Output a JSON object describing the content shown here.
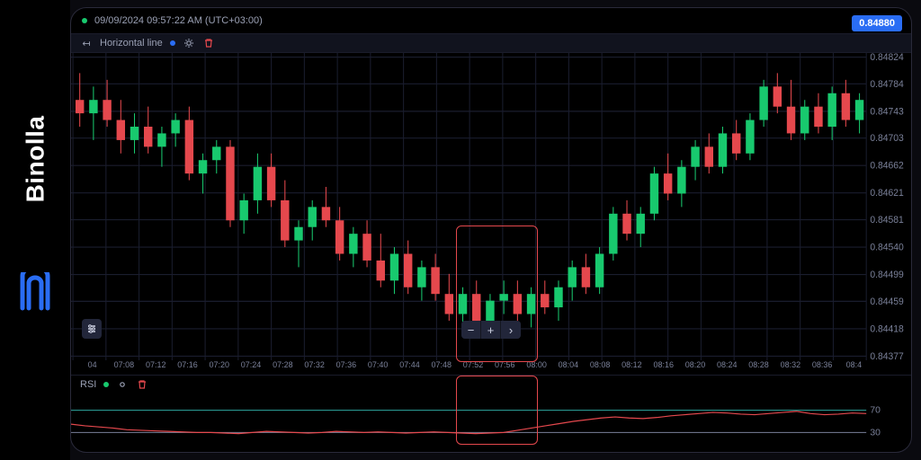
{
  "brand": {
    "name": "Binolla",
    "icon_color": "#2a6df4"
  },
  "meta": {
    "timestamp": "09/09/2024  09:57:22 AM  (UTC+03:00)",
    "price_badge": "0.84880"
  },
  "hline_bar": {
    "label": "Horizontal line",
    "dot_color": "#2a6df4"
  },
  "chart": {
    "type": "candlestick",
    "background_color": "#000000",
    "grid_color": "#1a1d2e",
    "up_color": "#18c96e",
    "down_color": "#e5484d",
    "horizontal_line_color": "#2a6df4",
    "horizontal_line_y": 0.8488,
    "highlight_box_color": "#e5484d",
    "ylim": [
      0.84377,
      0.84824
    ],
    "yticks": [
      0.84824,
      0.84784,
      0.84743,
      0.84703,
      0.84662,
      0.84621,
      0.84581,
      0.8454,
      0.84499,
      0.84459,
      0.84418,
      0.84377
    ],
    "xticks": [
      "04",
      "07:08",
      "07:12",
      "07:16",
      "07:20",
      "07:24",
      "07:28",
      "07:32",
      "07:36",
      "07:40",
      "07:44",
      "07:48",
      "07:52",
      "07:56",
      "08:00",
      "08:04",
      "08:08",
      "08:12",
      "08:16",
      "08:20",
      "08:24",
      "08:28",
      "08:32",
      "08:36",
      "08:4"
    ],
    "candles": [
      {
        "o": 0.8476,
        "h": 0.848,
        "l": 0.8472,
        "c": 0.8474,
        "d": "dn"
      },
      {
        "o": 0.8474,
        "h": 0.8478,
        "l": 0.847,
        "c": 0.8476,
        "d": "up"
      },
      {
        "o": 0.8476,
        "h": 0.8479,
        "l": 0.8472,
        "c": 0.8473,
        "d": "dn"
      },
      {
        "o": 0.8473,
        "h": 0.8476,
        "l": 0.8468,
        "c": 0.847,
        "d": "dn"
      },
      {
        "o": 0.847,
        "h": 0.8474,
        "l": 0.8468,
        "c": 0.8472,
        "d": "up"
      },
      {
        "o": 0.8472,
        "h": 0.8475,
        "l": 0.8468,
        "c": 0.8469,
        "d": "dn"
      },
      {
        "o": 0.8469,
        "h": 0.8472,
        "l": 0.8466,
        "c": 0.8471,
        "d": "up"
      },
      {
        "o": 0.8471,
        "h": 0.8474,
        "l": 0.8469,
        "c": 0.8473,
        "d": "up"
      },
      {
        "o": 0.8473,
        "h": 0.8475,
        "l": 0.8464,
        "c": 0.8465,
        "d": "dn"
      },
      {
        "o": 0.8465,
        "h": 0.8468,
        "l": 0.8462,
        "c": 0.8467,
        "d": "up"
      },
      {
        "o": 0.8467,
        "h": 0.847,
        "l": 0.8465,
        "c": 0.8469,
        "d": "up"
      },
      {
        "o": 0.8469,
        "h": 0.847,
        "l": 0.8457,
        "c": 0.8458,
        "d": "dn"
      },
      {
        "o": 0.8458,
        "h": 0.8462,
        "l": 0.8456,
        "c": 0.8461,
        "d": "up"
      },
      {
        "o": 0.8461,
        "h": 0.8468,
        "l": 0.8459,
        "c": 0.8466,
        "d": "up"
      },
      {
        "o": 0.8466,
        "h": 0.8468,
        "l": 0.846,
        "c": 0.8461,
        "d": "dn"
      },
      {
        "o": 0.8461,
        "h": 0.8464,
        "l": 0.8454,
        "c": 0.8455,
        "d": "dn"
      },
      {
        "o": 0.8455,
        "h": 0.8458,
        "l": 0.8451,
        "c": 0.8457,
        "d": "up"
      },
      {
        "o": 0.8457,
        "h": 0.8461,
        "l": 0.8455,
        "c": 0.846,
        "d": "up"
      },
      {
        "o": 0.846,
        "h": 0.8463,
        "l": 0.8457,
        "c": 0.8458,
        "d": "dn"
      },
      {
        "o": 0.8458,
        "h": 0.846,
        "l": 0.8452,
        "c": 0.8453,
        "d": "dn"
      },
      {
        "o": 0.8453,
        "h": 0.8457,
        "l": 0.8451,
        "c": 0.8456,
        "d": "up"
      },
      {
        "o": 0.8456,
        "h": 0.8458,
        "l": 0.8451,
        "c": 0.8452,
        "d": "dn"
      },
      {
        "o": 0.8452,
        "h": 0.8456,
        "l": 0.8448,
        "c": 0.8449,
        "d": "dn"
      },
      {
        "o": 0.8449,
        "h": 0.8454,
        "l": 0.8447,
        "c": 0.8453,
        "d": "up"
      },
      {
        "o": 0.8453,
        "h": 0.8455,
        "l": 0.8447,
        "c": 0.8448,
        "d": "dn"
      },
      {
        "o": 0.8448,
        "h": 0.8452,
        "l": 0.8446,
        "c": 0.8451,
        "d": "up"
      },
      {
        "o": 0.8451,
        "h": 0.8453,
        "l": 0.8446,
        "c": 0.8447,
        "d": "dn"
      },
      {
        "o": 0.8447,
        "h": 0.845,
        "l": 0.8443,
        "c": 0.8444,
        "d": "dn"
      },
      {
        "o": 0.8444,
        "h": 0.8448,
        "l": 0.8442,
        "c": 0.8447,
        "d": "up"
      },
      {
        "o": 0.8447,
        "h": 0.8449,
        "l": 0.8442,
        "c": 0.8443,
        "d": "dn"
      },
      {
        "o": 0.8443,
        "h": 0.8447,
        "l": 0.8441,
        "c": 0.8446,
        "d": "up"
      },
      {
        "o": 0.8446,
        "h": 0.8449,
        "l": 0.8444,
        "c": 0.8447,
        "d": "up"
      },
      {
        "o": 0.8447,
        "h": 0.8449,
        "l": 0.8443,
        "c": 0.8444,
        "d": "dn"
      },
      {
        "o": 0.8444,
        "h": 0.8448,
        "l": 0.8442,
        "c": 0.8447,
        "d": "up"
      },
      {
        "o": 0.8447,
        "h": 0.8449,
        "l": 0.8444,
        "c": 0.8445,
        "d": "dn"
      },
      {
        "o": 0.8445,
        "h": 0.8449,
        "l": 0.8443,
        "c": 0.8448,
        "d": "up"
      },
      {
        "o": 0.8448,
        "h": 0.8452,
        "l": 0.8446,
        "c": 0.8451,
        "d": "up"
      },
      {
        "o": 0.8451,
        "h": 0.8453,
        "l": 0.8447,
        "c": 0.8448,
        "d": "dn"
      },
      {
        "o": 0.8448,
        "h": 0.8454,
        "l": 0.8447,
        "c": 0.8453,
        "d": "up"
      },
      {
        "o": 0.8453,
        "h": 0.846,
        "l": 0.8452,
        "c": 0.8459,
        "d": "up"
      },
      {
        "o": 0.8459,
        "h": 0.8461,
        "l": 0.8455,
        "c": 0.8456,
        "d": "dn"
      },
      {
        "o": 0.8456,
        "h": 0.846,
        "l": 0.8454,
        "c": 0.8459,
        "d": "up"
      },
      {
        "o": 0.8459,
        "h": 0.8466,
        "l": 0.8458,
        "c": 0.8465,
        "d": "up"
      },
      {
        "o": 0.8465,
        "h": 0.8468,
        "l": 0.8461,
        "c": 0.8462,
        "d": "dn"
      },
      {
        "o": 0.8462,
        "h": 0.8467,
        "l": 0.846,
        "c": 0.8466,
        "d": "up"
      },
      {
        "o": 0.8466,
        "h": 0.847,
        "l": 0.8464,
        "c": 0.8469,
        "d": "up"
      },
      {
        "o": 0.8469,
        "h": 0.8471,
        "l": 0.8465,
        "c": 0.8466,
        "d": "dn"
      },
      {
        "o": 0.8466,
        "h": 0.8472,
        "l": 0.8465,
        "c": 0.8471,
        "d": "up"
      },
      {
        "o": 0.8471,
        "h": 0.8473,
        "l": 0.8467,
        "c": 0.8468,
        "d": "dn"
      },
      {
        "o": 0.8468,
        "h": 0.8474,
        "l": 0.8467,
        "c": 0.8473,
        "d": "up"
      },
      {
        "o": 0.8473,
        "h": 0.8479,
        "l": 0.8472,
        "c": 0.8478,
        "d": "up"
      },
      {
        "o": 0.8478,
        "h": 0.848,
        "l": 0.8474,
        "c": 0.8475,
        "d": "dn"
      },
      {
        "o": 0.8475,
        "h": 0.8479,
        "l": 0.847,
        "c": 0.8471,
        "d": "dn"
      },
      {
        "o": 0.8471,
        "h": 0.8476,
        "l": 0.847,
        "c": 0.8475,
        "d": "up"
      },
      {
        "o": 0.8475,
        "h": 0.8477,
        "l": 0.8471,
        "c": 0.8472,
        "d": "dn"
      },
      {
        "o": 0.8472,
        "h": 0.8478,
        "l": 0.847,
        "c": 0.8477,
        "d": "up"
      },
      {
        "o": 0.8477,
        "h": 0.8479,
        "l": 0.8472,
        "c": 0.8473,
        "d": "dn"
      },
      {
        "o": 0.8473,
        "h": 0.8477,
        "l": 0.8471,
        "c": 0.8476,
        "d": "up"
      }
    ]
  },
  "rsi": {
    "label": "RSI",
    "line_color": "#e5484d",
    "level_70_color": "#2ea8a0",
    "level_30_color": "#7a8099",
    "levels": [
      70,
      30
    ],
    "values": [
      45,
      42,
      40,
      38,
      35,
      34,
      33,
      32,
      31,
      30,
      30,
      29,
      28,
      30,
      32,
      31,
      30,
      29,
      30,
      32,
      31,
      30,
      31,
      30,
      29,
      30,
      31,
      30,
      29,
      28,
      29,
      30,
      34,
      38,
      42,
      46,
      50,
      53,
      56,
      58,
      56,
      55,
      57,
      60,
      62,
      64,
      66,
      65,
      63,
      62,
      64,
      66,
      68,
      64,
      62,
      63,
      65,
      64
    ]
  },
  "zoom": {
    "minus": "−",
    "plus": "+",
    "next": "›"
  }
}
